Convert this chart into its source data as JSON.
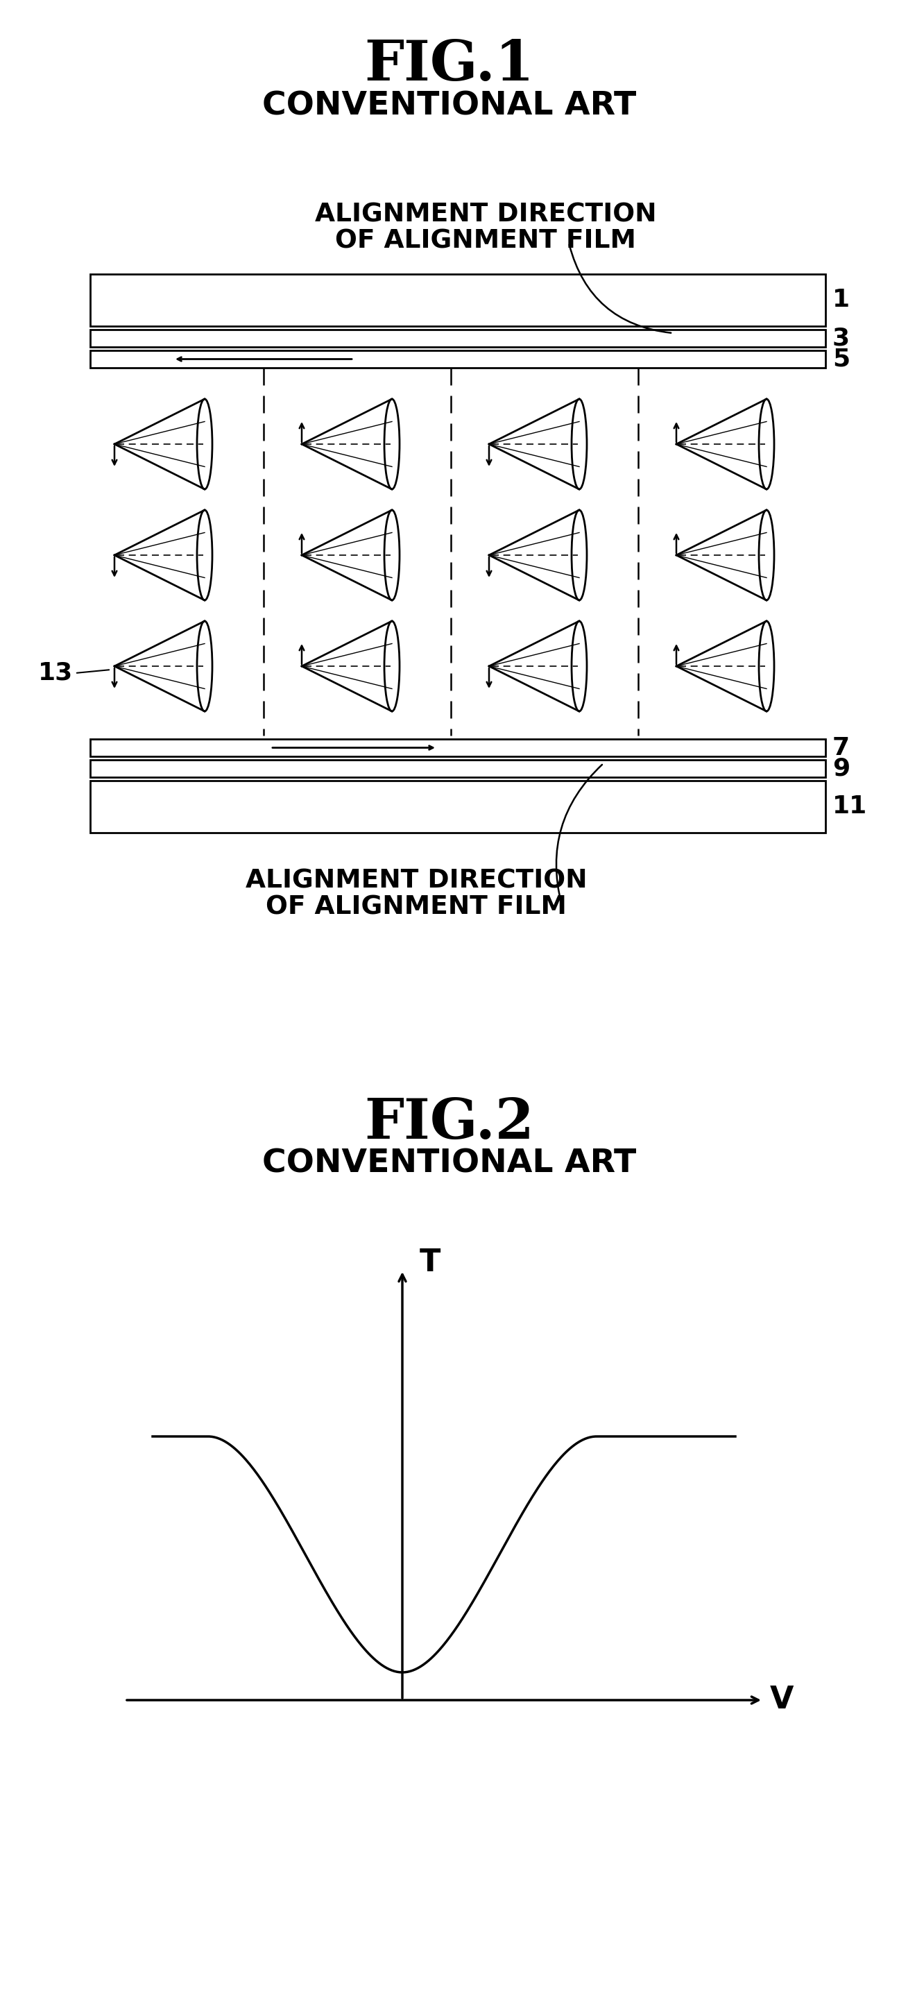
{
  "fig1_title": "FIG.1",
  "fig1_subtitle": "CONVENTIONAL ART",
  "fig2_title": "FIG.2",
  "fig2_subtitle": "CONVENTIONAL ART",
  "align_top_line1": "ALIGNMENT DIRECTION",
  "align_top_line2": "OF ALIGNMENT FILM",
  "align_bot_line1": "ALIGNMENT DIRECTION",
  "align_bot_line2": "OF ALIGNMENT FILM",
  "label_1": "1",
  "label_3": "3",
  "label_5": "5",
  "label_7": "7",
  "label_9": "9",
  "label_11": "11",
  "label_13": "13",
  "fig2_T": "T",
  "fig2_V": "V",
  "bg_color": "#ffffff",
  "lc": "#000000"
}
